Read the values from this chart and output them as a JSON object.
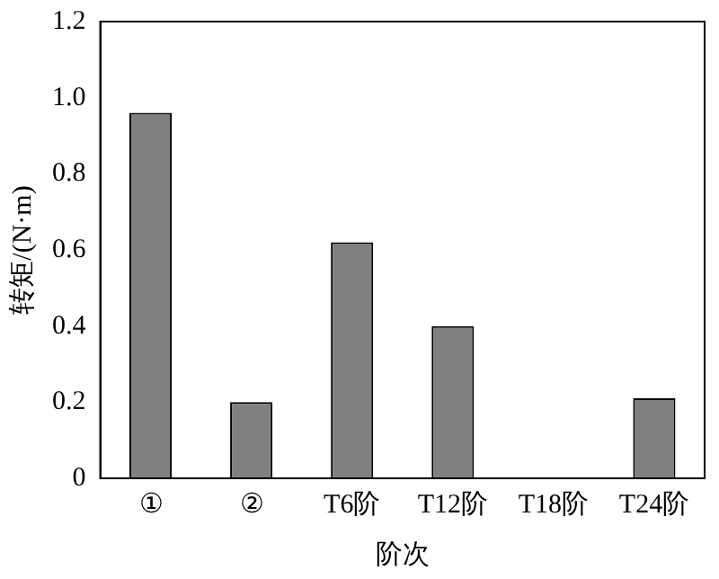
{
  "chart_data": {
    "type": "bar",
    "xlabel": "阶次",
    "ylabel": "转矩/(N·m)",
    "categories": [
      "①",
      "②",
      "T6阶",
      "T12阶",
      "T18阶",
      "T24阶"
    ],
    "values": [
      0.96,
      0.2,
      0.62,
      0.4,
      0,
      0.21
    ],
    "color": "#808080",
    "ylim": [
      0,
      1.2
    ],
    "yticks": [
      0,
      0.2,
      0.4,
      0.6,
      0.8,
      {
        "value": 1,
        "label": "1.0"
      },
      1.2
    ],
    "grid": false,
    "legend": false
  }
}
